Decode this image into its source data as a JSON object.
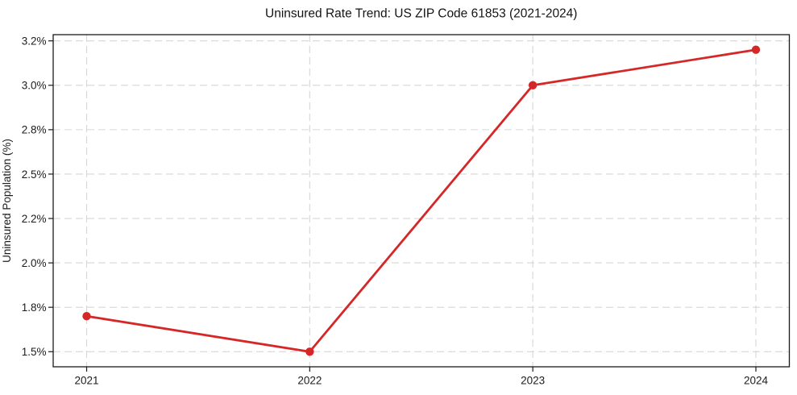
{
  "chart_data": {
    "type": "line",
    "title": "Uninsured Rate Trend: US ZIP Code 61853 (2021-2024)",
    "xlabel": "",
    "ylabel": "Uninsured Population (%)",
    "x": [
      2021,
      2022,
      2023,
      2024
    ],
    "values": [
      1.7,
      1.5,
      3.0,
      3.2
    ],
    "x_tick_labels": [
      "2021",
      "2022",
      "2023",
      "2024"
    ],
    "y_ticks": [
      {
        "value": 1.5,
        "label": "1.5%"
      },
      {
        "value": 1.75,
        "label": "1.8%"
      },
      {
        "value": 2.0,
        "label": "2.0%"
      },
      {
        "value": 2.25,
        "label": "2.2%"
      },
      {
        "value": 2.5,
        "label": "2.5%"
      },
      {
        "value": 2.75,
        "label": "2.8%"
      },
      {
        "value": 3.0,
        "label": "3.0%"
      },
      {
        "value": 3.25,
        "label": "3.2%"
      }
    ],
    "xlim": [
      2020.85,
      2024.15
    ],
    "ylim": [
      1.415,
      3.285
    ],
    "grid": true,
    "grid_style": "dashed",
    "legend": null,
    "colors": {
      "line": "#d62728",
      "marker": "#d62728",
      "grid": "#d6d6d6",
      "axes": "#1a1a1a",
      "background": "#ffffff"
    }
  }
}
